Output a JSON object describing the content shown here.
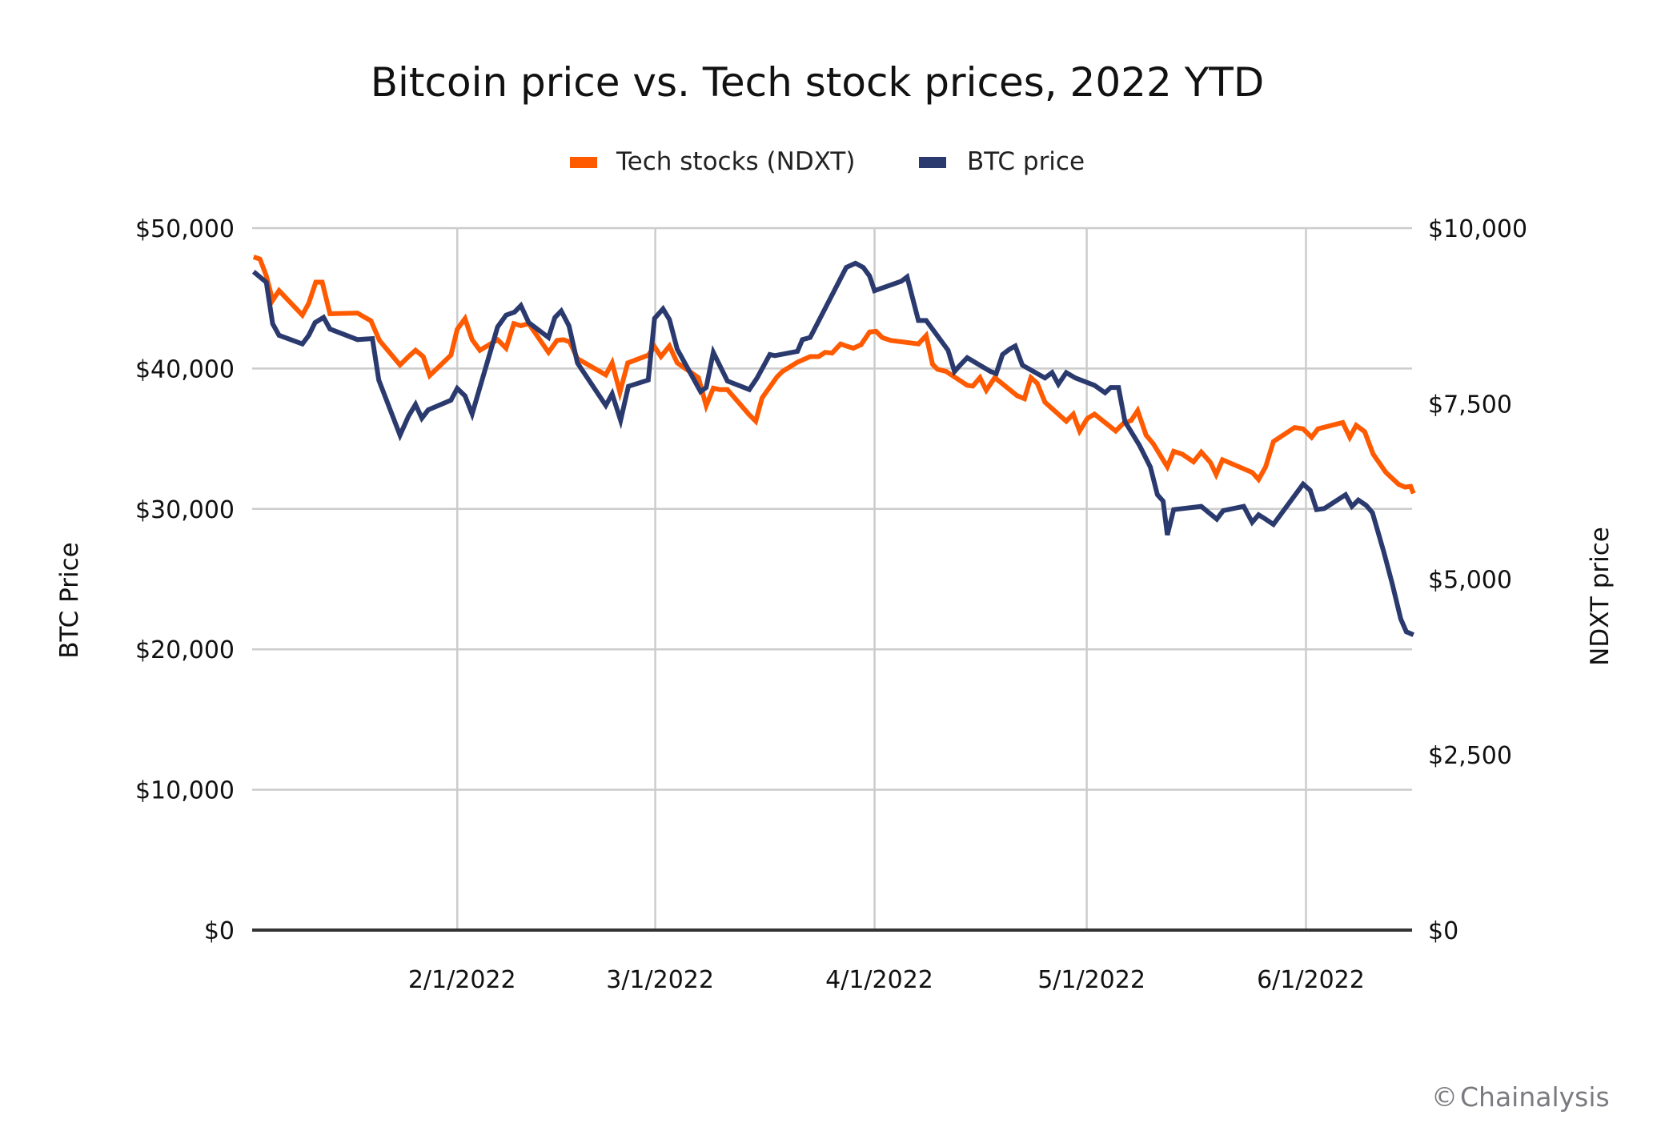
{
  "chart_data": {
    "type": "line",
    "title": "Bitcoin price vs. Tech stock prices, 2022 YTD",
    "xlabel": "",
    "ylabel": "BTC Price",
    "y2label": "NDXT price",
    "x_units": "day of year 2022 (Jan 1 = 1)",
    "xlim": [
      3,
      167
    ],
    "ylim": [
      0,
      50000
    ],
    "y2lim": [
      0,
      10000
    ],
    "x_ticks": [
      {
        "label": "2/1/2022",
        "x": 32
      },
      {
        "label": "3/1/2022",
        "x": 60
      },
      {
        "label": "4/1/2022",
        "x": 91
      },
      {
        "label": "5/1/2022",
        "x": 121
      },
      {
        "label": "6/1/2022",
        "x": 152
      }
    ],
    "y_ticks": [
      {
        "label": "$0",
        "value": 0
      },
      {
        "label": "$10,000",
        "value": 10000
      },
      {
        "label": "$20,000",
        "value": 20000
      },
      {
        "label": "$30,000",
        "value": 30000
      },
      {
        "label": "$40,000",
        "value": 40000
      },
      {
        "label": "$50,000",
        "value": 50000
      }
    ],
    "y2_ticks": [
      {
        "label": "$0",
        "value": 0
      },
      {
        "label": "$2,500",
        "value": 2500
      },
      {
        "label": "$5,000",
        "value": 5000
      },
      {
        "label": "$7,500",
        "value": 7500
      },
      {
        "label": "$10,000",
        "value": 10000
      }
    ],
    "grid": true,
    "legend_position": "top-center",
    "series": [
      {
        "name": "Tech stocks (NDXT)",
        "axis": "right",
        "color": "#ff5a00",
        "points": [
          [
            3.2,
            9590
          ],
          [
            4.1,
            9560
          ],
          [
            5.0,
            9320
          ],
          [
            5.9,
            8970
          ],
          [
            6.8,
            9110
          ],
          [
            10.1,
            8760
          ],
          [
            11.0,
            8930
          ],
          [
            12.0,
            9230
          ],
          [
            12.9,
            9230
          ],
          [
            14.0,
            8780
          ],
          [
            17.9,
            8790
          ],
          [
            18.9,
            8730
          ],
          [
            19.8,
            8680
          ],
          [
            21.0,
            8400
          ],
          [
            23.9,
            8050
          ],
          [
            25.1,
            8170
          ],
          [
            26.1,
            8260
          ],
          [
            27.2,
            8170
          ],
          [
            28.1,
            7900
          ],
          [
            31.1,
            8190
          ],
          [
            32.0,
            8560
          ],
          [
            33.1,
            8710
          ],
          [
            34.1,
            8410
          ],
          [
            35.2,
            8260
          ],
          [
            37.7,
            8410
          ],
          [
            38.9,
            8290
          ],
          [
            40.0,
            8640
          ],
          [
            41.0,
            8610
          ],
          [
            42.1,
            8640
          ],
          [
            44.9,
            8230
          ],
          [
            46.1,
            8400
          ],
          [
            47.0,
            8410
          ],
          [
            47.9,
            8380
          ],
          [
            49.0,
            8140
          ],
          [
            53.0,
            7910
          ],
          [
            53.9,
            8080
          ],
          [
            55.0,
            7660
          ],
          [
            56.1,
            8080
          ],
          [
            59.0,
            8190
          ],
          [
            59.9,
            8310
          ],
          [
            60.8,
            8170
          ],
          [
            62.0,
            8320
          ],
          [
            63.1,
            8080
          ],
          [
            66.1,
            7870
          ],
          [
            67.2,
            7470
          ],
          [
            68.2,
            7720
          ],
          [
            69.1,
            7700
          ],
          [
            70.2,
            7700
          ],
          [
            73.3,
            7340
          ],
          [
            74.2,
            7250
          ],
          [
            75.1,
            7580
          ],
          [
            77.2,
            7880
          ],
          [
            78.0,
            7960
          ],
          [
            80.1,
            8090
          ],
          [
            81.9,
            8170
          ],
          [
            83.1,
            8170
          ],
          [
            84.0,
            8230
          ],
          [
            85.0,
            8220
          ],
          [
            86.2,
            8350
          ],
          [
            87.0,
            8320
          ],
          [
            88.0,
            8290
          ],
          [
            89.1,
            8340
          ],
          [
            90.3,
            8520
          ],
          [
            91.2,
            8530
          ],
          [
            92.1,
            8440
          ],
          [
            93.3,
            8400
          ],
          [
            97.2,
            8350
          ],
          [
            98.3,
            8470
          ],
          [
            99.2,
            8060
          ],
          [
            99.9,
            7990
          ],
          [
            101.1,
            7960
          ],
          [
            104.1,
            7760
          ],
          [
            104.9,
            7750
          ],
          [
            105.9,
            7870
          ],
          [
            106.8,
            7690
          ],
          [
            108.0,
            7870
          ],
          [
            111.2,
            7610
          ],
          [
            112.2,
            7570
          ],
          [
            113.1,
            7870
          ],
          [
            114.0,
            7790
          ],
          [
            115.1,
            7520
          ],
          [
            118.1,
            7250
          ],
          [
            119.1,
            7350
          ],
          [
            120.0,
            7110
          ],
          [
            121.1,
            7290
          ],
          [
            122.1,
            7350
          ],
          [
            125.1,
            7110
          ],
          [
            126.2,
            7220
          ],
          [
            127.3,
            7260
          ],
          [
            128.2,
            7400
          ],
          [
            129.4,
            7050
          ],
          [
            130.4,
            6930
          ],
          [
            132.4,
            6600
          ],
          [
            133.3,
            6820
          ],
          [
            134.5,
            6780
          ],
          [
            136.1,
            6670
          ],
          [
            137.2,
            6810
          ],
          [
            138.5,
            6660
          ],
          [
            139.3,
            6490
          ],
          [
            140.2,
            6700
          ],
          [
            144.4,
            6520
          ],
          [
            145.3,
            6420
          ],
          [
            146.3,
            6600
          ],
          [
            147.4,
            6960
          ],
          [
            150.4,
            7160
          ],
          [
            151.6,
            7140
          ],
          [
            152.8,
            7020
          ],
          [
            153.7,
            7140
          ],
          [
            157.2,
            7230
          ],
          [
            158.2,
            7020
          ],
          [
            159.1,
            7190
          ],
          [
            160.3,
            7100
          ],
          [
            161.5,
            6780
          ],
          [
            163.3,
            6520
          ],
          [
            165.1,
            6350
          ],
          [
            166.0,
            6310
          ],
          [
            166.8,
            6320
          ],
          [
            167.2,
            6220
          ]
        ]
      },
      {
        "name": "BTC price",
        "axis": "left",
        "color": "#2b3a6e",
        "points": [
          [
            3.2,
            46900
          ],
          [
            5.0,
            46140
          ],
          [
            5.9,
            43190
          ],
          [
            6.8,
            42360
          ],
          [
            10.1,
            41750
          ],
          [
            11.0,
            42360
          ],
          [
            11.9,
            43270
          ],
          [
            13.1,
            43640
          ],
          [
            14.0,
            42810
          ],
          [
            17.9,
            42060
          ],
          [
            20.0,
            42130
          ],
          [
            20.9,
            39180
          ],
          [
            23.9,
            35250
          ],
          [
            25.1,
            36610
          ],
          [
            26.1,
            37440
          ],
          [
            27.0,
            36460
          ],
          [
            27.9,
            37060
          ],
          [
            31.1,
            37740
          ],
          [
            32.0,
            38580
          ],
          [
            33.1,
            38050
          ],
          [
            34.1,
            36760
          ],
          [
            37.7,
            42960
          ],
          [
            38.9,
            43800
          ],
          [
            40.1,
            44020
          ],
          [
            41.0,
            44480
          ],
          [
            42.1,
            43270
          ],
          [
            44.9,
            42210
          ],
          [
            45.8,
            43640
          ],
          [
            46.7,
            44100
          ],
          [
            47.8,
            43040
          ],
          [
            49.0,
            40390
          ],
          [
            53.0,
            37370
          ],
          [
            53.9,
            38200
          ],
          [
            55.1,
            36310
          ],
          [
            56.2,
            38730
          ],
          [
            59.0,
            39180
          ],
          [
            59.9,
            43570
          ],
          [
            61.1,
            44250
          ],
          [
            62.0,
            43490
          ],
          [
            63.1,
            41380
          ],
          [
            66.4,
            38350
          ],
          [
            67.2,
            38650
          ],
          [
            68.2,
            41150
          ],
          [
            70.2,
            39110
          ],
          [
            73.3,
            38500
          ],
          [
            74.4,
            39330
          ],
          [
            76.2,
            41000
          ],
          [
            76.9,
            40920
          ],
          [
            80.1,
            41220
          ],
          [
            80.8,
            42060
          ],
          [
            81.9,
            42210
          ],
          [
            87.0,
            47200
          ],
          [
            88.3,
            47500
          ],
          [
            89.4,
            47200
          ],
          [
            90.3,
            46590
          ],
          [
            91.0,
            45540
          ],
          [
            94.8,
            46220
          ],
          [
            95.6,
            46520
          ],
          [
            97.2,
            43420
          ],
          [
            98.3,
            43420
          ],
          [
            101.4,
            41300
          ],
          [
            102.3,
            39790
          ],
          [
            103.1,
            40240
          ],
          [
            104.1,
            40770
          ],
          [
            107.4,
            39790
          ],
          [
            108.2,
            39640
          ],
          [
            109.1,
            41000
          ],
          [
            110.1,
            41380
          ],
          [
            110.9,
            41600
          ],
          [
            111.9,
            40240
          ],
          [
            115.1,
            39330
          ],
          [
            116.1,
            39710
          ],
          [
            117.0,
            38880
          ],
          [
            118.1,
            39710
          ],
          [
            119.4,
            39330
          ],
          [
            122.1,
            38800
          ],
          [
            123.6,
            38270
          ],
          [
            124.4,
            38650
          ],
          [
            125.5,
            38650
          ],
          [
            126.4,
            36230
          ],
          [
            128.5,
            34490
          ],
          [
            130.0,
            32980
          ],
          [
            131.0,
            31010
          ],
          [
            131.8,
            30560
          ],
          [
            132.4,
            28140
          ],
          [
            133.3,
            29950
          ],
          [
            137.2,
            30180
          ],
          [
            138.1,
            29800
          ],
          [
            139.4,
            29270
          ],
          [
            140.3,
            29880
          ],
          [
            143.2,
            30180
          ],
          [
            144.4,
            29050
          ],
          [
            145.3,
            29580
          ],
          [
            146.3,
            29270
          ],
          [
            147.4,
            28900
          ],
          [
            151.6,
            31770
          ],
          [
            152.6,
            31320
          ],
          [
            153.5,
            29950
          ],
          [
            154.6,
            30030
          ],
          [
            157.6,
            31010
          ],
          [
            158.5,
            30180
          ],
          [
            159.4,
            30630
          ],
          [
            160.5,
            30260
          ],
          [
            161.4,
            29730
          ],
          [
            163.0,
            26930
          ],
          [
            164.2,
            24660
          ],
          [
            165.4,
            22160
          ],
          [
            166.2,
            21250
          ],
          [
            167.2,
            21030
          ]
        ]
      }
    ]
  },
  "watermark": {
    "icon": "copyright-icon",
    "symbol": "©",
    "text": "Chainalysis"
  }
}
